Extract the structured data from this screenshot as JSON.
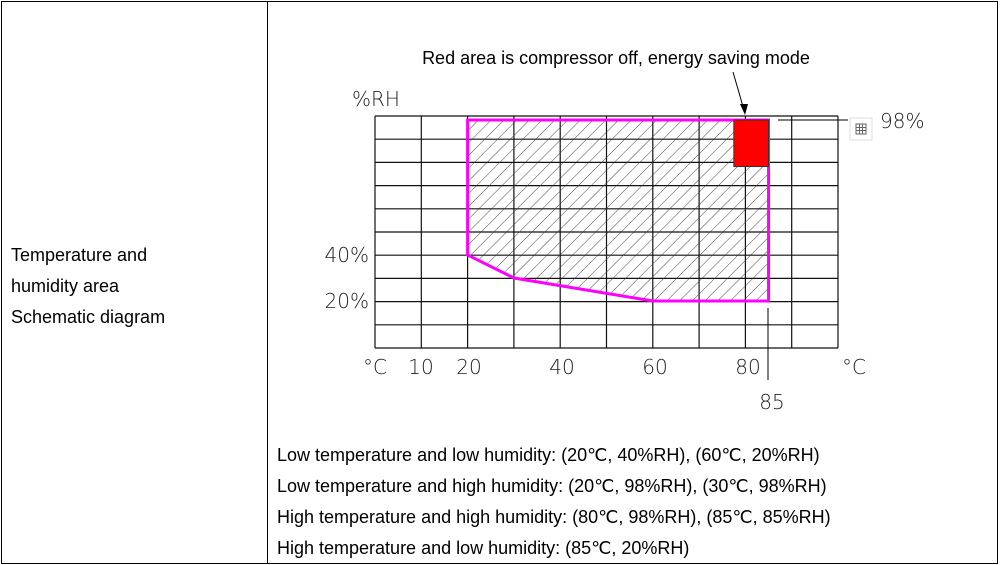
{
  "row_label": [
    "Temperature and",
    "humidity area",
    "Schematic diagram"
  ],
  "annotation": "Red area is compressor off, energy saving mode",
  "notes": [
    "Low temperature and low humidity: (20℃, 40%RH), (60℃, 20%RH)",
    "Low temperature and high humidity: (20℃, 98%RH), (30℃, 98%RH)",
    "High temperature and high humidity: (80℃, 98%RH), (85℃, 85%RH)",
    "High temperature and low humidity: (85℃, 20%RH)"
  ],
  "chart_data": {
    "type": "area",
    "ylabel": "%RH",
    "xlabel": "°C",
    "x_tick_labels": [
      "°C",
      "10",
      "20",
      "40",
      "60",
      "80",
      "°C"
    ],
    "x_extra_label": "85",
    "y_tick_labels": [
      "40%",
      "20%"
    ],
    "y_top_label": "98%",
    "region_outline_color": "#ff00ff",
    "energy_saving_color": "#ff0000",
    "region_polygon": [
      [
        20,
        98
      ],
      [
        85,
        98
      ],
      [
        85,
        20
      ],
      [
        60,
        20
      ],
      [
        30,
        30
      ],
      [
        20,
        40
      ]
    ],
    "energy_saving_region": {
      "t_min": 77.5,
      "t_max": 85,
      "rh_min": 78,
      "rh_max": 98
    },
    "xlim": [
      0,
      100
    ]
  }
}
